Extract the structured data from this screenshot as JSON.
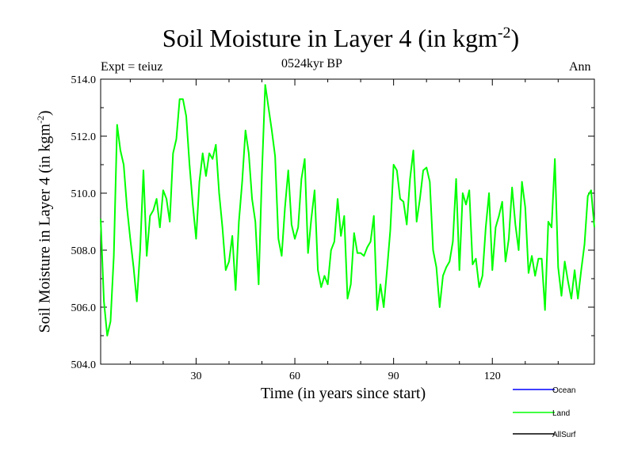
{
  "chart_data": {
    "type": "line",
    "title": "Soil Moisture in Layer 4 (in kgm",
    "title_exp": "-2",
    "title_close": ")",
    "subtitle": "0524kyr BP",
    "expt_label": "Expt = teiuz",
    "season_label": "Ann",
    "xlabel": "Time (in years since start)",
    "ylabel": "Soil Moisture in Layer 4 (in kgm",
    "ylabel_exp": "-2",
    "ylabel_close": ")",
    "xlim": [
      1,
      151
    ],
    "ylim": [
      504.0,
      514.0
    ],
    "x_ticks": [
      30,
      60,
      90,
      120
    ],
    "x_tick_labels": [
      "30",
      "60",
      "90",
      "120"
    ],
    "y_ticks": [
      504.0,
      506.0,
      508.0,
      510.0,
      512.0,
      514.0
    ],
    "y_tick_labels": [
      "504.0",
      "506.0",
      "508.0",
      "510.0",
      "512.0",
      "514.0"
    ],
    "legend_position": "bottom-right",
    "series": [
      {
        "name": "Ocean",
        "color": "#0000ff",
        "values": []
      },
      {
        "name": "Land",
        "color": "#00ff00",
        "x_start": 1,
        "values": [
          509.1,
          506.2,
          505.0,
          505.5,
          507.8,
          512.4,
          511.5,
          511.0,
          509.5,
          508.4,
          507.4,
          506.2,
          508.0,
          510.8,
          507.8,
          509.2,
          509.4,
          509.8,
          508.8,
          510.1,
          509.8,
          509.0,
          511.4,
          511.9,
          513.3,
          513.3,
          512.7,
          511.0,
          509.6,
          508.4,
          510.4,
          511.4,
          510.6,
          511.4,
          511.2,
          511.7,
          510.0,
          508.8,
          507.3,
          507.6,
          508.5,
          506.6,
          509.0,
          510.4,
          512.2,
          511.4,
          509.8,
          509.0,
          506.8,
          510.7,
          513.8,
          513.0,
          512.2,
          511.3,
          508.4,
          507.8,
          509.5,
          510.8,
          508.9,
          508.4,
          508.8,
          510.5,
          511.2,
          507.9,
          509.1,
          510.1,
          507.3,
          506.7,
          507.1,
          506.8,
          508.0,
          508.3,
          509.8,
          508.5,
          509.2,
          506.3,
          506.8,
          508.6,
          507.9,
          507.9,
          507.8,
          508.1,
          508.3,
          509.2,
          505.9,
          506.8,
          506.0,
          507.3,
          508.7,
          511.0,
          510.8,
          509.8,
          509.7,
          508.9,
          510.5,
          511.5,
          509.0,
          509.8,
          510.8,
          510.9,
          510.4,
          508.0,
          507.4,
          506.0,
          507.1,
          507.4,
          507.6,
          508.3,
          510.5,
          507.3,
          510.0,
          509.6,
          510.1,
          507.5,
          507.7,
          506.7,
          507.1,
          508.8,
          510.0,
          507.3,
          508.8,
          509.2,
          509.7,
          507.6,
          508.4,
          510.2,
          508.9,
          508.0,
          510.4,
          509.5,
          507.2,
          507.8,
          507.1,
          507.7,
          507.7,
          505.9,
          509.0,
          508.8,
          511.2,
          507.4,
          506.4,
          507.6,
          506.9,
          506.3,
          507.3,
          506.3,
          507.3,
          508.2,
          509.9,
          510.1,
          508.8
        ]
      },
      {
        "name": "AllSurf",
        "color": "#000000",
        "values": []
      }
    ]
  }
}
